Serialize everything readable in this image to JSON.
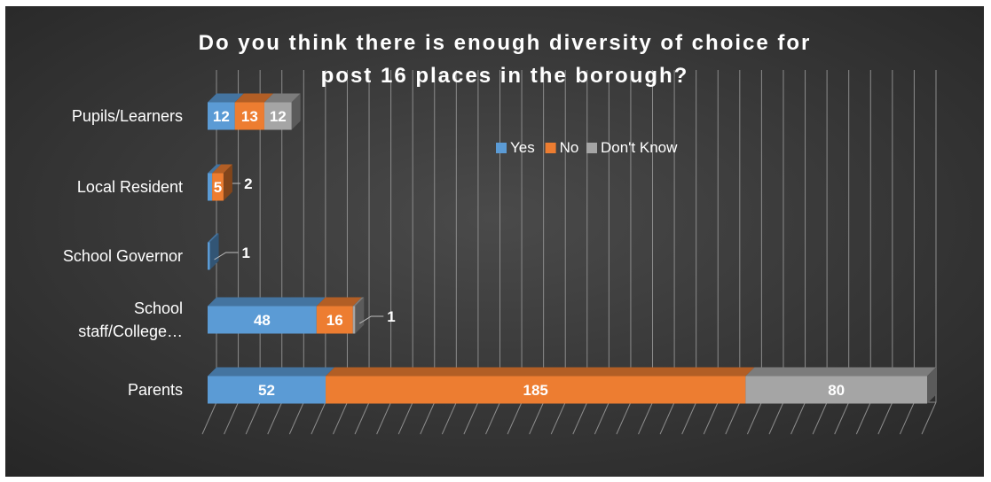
{
  "chart_data": {
    "type": "bar",
    "orientation": "horizontal",
    "stacked": true,
    "title": "Do you think there is enough diversity of choice for post 16 places in the borough?",
    "title_lines": [
      "Do you think there is enough diversity of choice for",
      "post 16 places in the borough?"
    ],
    "categories": [
      "Pupils/Learners",
      "Local Resident",
      "School Governor",
      "School staff/College…",
      "Parents"
    ],
    "category_lines": [
      [
        "Pupils/Learners"
      ],
      [
        "Local Resident"
      ],
      [
        "School Governor"
      ],
      [
        "School",
        "staff/College…"
      ],
      [
        "Parents"
      ]
    ],
    "series": [
      {
        "name": "Yes",
        "values": [
          12,
          2,
          1,
          48,
          52
        ],
        "color": "#5b9bd5"
      },
      {
        "name": "No",
        "values": [
          13,
          5,
          0,
          16,
          185
        ],
        "color": "#ed7d31"
      },
      {
        "name": "Don't Know",
        "values": [
          12,
          0,
          0,
          1,
          80
        ],
        "color": "#a5a5a5"
      }
    ],
    "data_labels": [
      [
        "12",
        "13",
        "12"
      ],
      [
        "2",
        "5",
        ""
      ],
      [
        "1",
        "",
        ""
      ],
      [
        "48",
        "16",
        "1"
      ],
      [
        "52",
        "185",
        "80"
      ]
    ],
    "xlim": [
      0,
      317
    ],
    "legend_position": "top-right-inside",
    "grid": true,
    "three_d": true,
    "background": "#333333"
  }
}
